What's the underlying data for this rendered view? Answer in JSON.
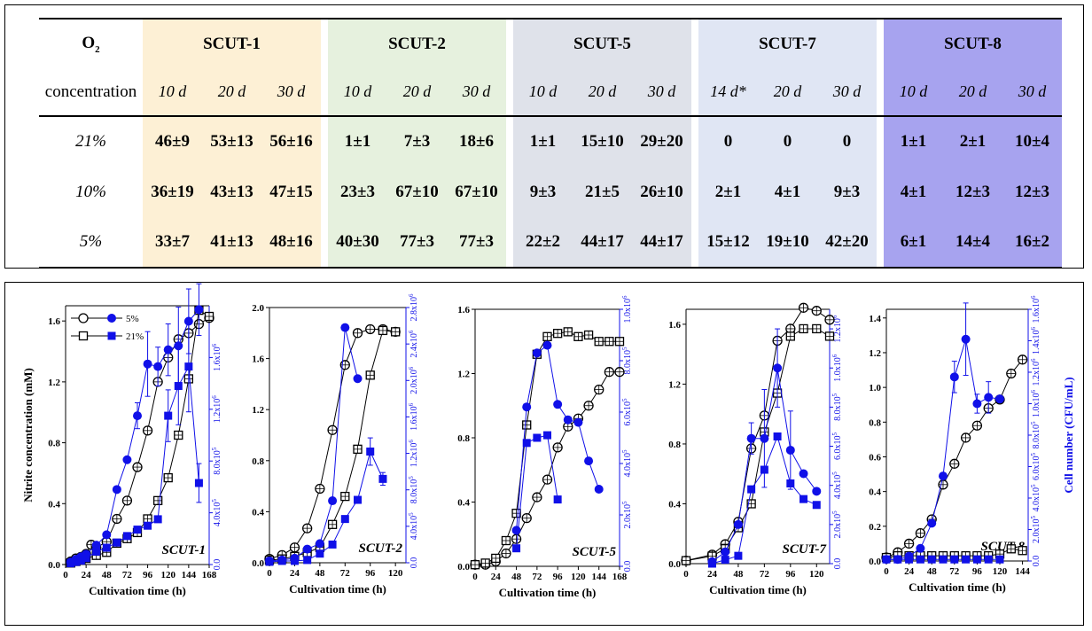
{
  "table": {
    "o2_label": "O",
    "o2_sub": "2",
    "conc_label": "concentration",
    "strains": [
      {
        "name": "SCUT-1",
        "days": [
          "10 d",
          "20 d",
          "30 d"
        ]
      },
      {
        "name": "SCUT-2",
        "days": [
          "10 d",
          "20 d",
          "30 d"
        ]
      },
      {
        "name": "SCUT-5",
        "days": [
          "10 d",
          "20 d",
          "30 d"
        ]
      },
      {
        "name": "SCUT-7",
        "days": [
          "14 d*",
          "20 d",
          "30 d"
        ]
      },
      {
        "name": "SCUT-8",
        "days": [
          "10 d",
          "20 d",
          "30 d"
        ]
      }
    ],
    "rows": [
      {
        "label": "21%",
        "cells": [
          [
            "46±9",
            "53±13",
            "56±16"
          ],
          [
            "1±1",
            "7±3",
            "18±6"
          ],
          [
            "1±1",
            "15±10",
            "29±20"
          ],
          [
            "0",
            "0",
            "0"
          ],
          [
            "1±1",
            "2±1",
            "10±4"
          ]
        ]
      },
      {
        "label": "10%",
        "cells": [
          [
            "36±19",
            "43±13",
            "47±15"
          ],
          [
            "23±3",
            "67±10",
            "67±10"
          ],
          [
            "9±3",
            "21±5",
            "26±10"
          ],
          [
            "2±1",
            "4±1",
            "9±3"
          ],
          [
            "4±1",
            "12±3",
            "12±3"
          ]
        ]
      },
      {
        "label": "5%",
        "cells": [
          [
            "33±7",
            "41±13",
            "48±16"
          ],
          [
            "40±30",
            "77±3",
            "77±3"
          ],
          [
            "22±2",
            "44±17",
            "44±17"
          ],
          [
            "15±12",
            "19±10",
            "42±20"
          ],
          [
            "6±1",
            "14±4",
            "16±2"
          ]
        ]
      }
    ]
  },
  "legend": {
    "series_5": "5%",
    "series_21": "21%"
  },
  "axis_titles": {
    "ylabel_left": "Nitrite concentration (mM)",
    "ylabel_right": "Cell number (CFU/mL)",
    "xlabel": "Cultivation time (h)"
  },
  "colors": {
    "nitrite": "#000000",
    "cells": "#1010e8",
    "grid": "#000000"
  },
  "chart_data": [
    {
      "type": "line",
      "title": "SCUT-1",
      "xlabel": "Cultivation time (h)",
      "ylabel": "Nitrite concentration (mM)",
      "xlim": [
        0,
        168
      ],
      "ylim": [
        0,
        1.7
      ],
      "y2lim": [
        0,
        2000000
      ],
      "xticks": [
        0,
        24,
        48,
        72,
        96,
        120,
        144,
        168
      ],
      "yticks": [
        0,
        0.4,
        0.8,
        1.2,
        1.6
      ],
      "y2ticks": [
        0,
        400000,
        800000,
        1200000,
        1600000
      ],
      "y2ticklabels": [
        "0.0",
        "4.0x10^5",
        "8.0x10^5",
        "1.2x10^6",
        "1.6x10^6"
      ],
      "ytickfmt": 1,
      "series": [
        {
          "name": "5%",
          "kind": "nitrite",
          "marker": "circle",
          "x": [
            6,
            12,
            18,
            24,
            30,
            36,
            48,
            60,
            72,
            84,
            96,
            108,
            120,
            132,
            144,
            156,
            168
          ],
          "y": [
            0.02,
            0.04,
            0.05,
            0.07,
            0.13,
            0.11,
            0.15,
            0.3,
            0.42,
            0.64,
            0.88,
            1.2,
            1.36,
            1.48,
            1.52,
            1.58,
            1.62
          ]
        },
        {
          "name": "21%",
          "kind": "nitrite",
          "marker": "square",
          "x": [
            6,
            12,
            18,
            24,
            36,
            48,
            60,
            72,
            84,
            96,
            108,
            120,
            132,
            144,
            156,
            168
          ],
          "y": [
            0.01,
            0.02,
            0.03,
            0.04,
            0.06,
            0.08,
            0.14,
            0.17,
            0.21,
            0.3,
            0.42,
            0.57,
            0.85,
            1.22,
            1.67,
            1.63
          ]
        },
        {
          "name": "5%",
          "kind": "cells",
          "marker": "circle",
          "x": [
            6,
            12,
            18,
            24,
            36,
            48,
            60,
            72,
            84,
            96,
            108,
            120,
            132,
            144,
            156
          ],
          "y": [
            20000,
            40000,
            60000,
            80000,
            150000,
            230000,
            580000,
            810000,
            1150000,
            1550000,
            1530000,
            1660000,
            1690000,
            1880000,
            1970000
          ],
          "err": [
            0,
            0,
            0,
            0,
            0,
            0,
            0,
            0,
            100000,
            250000,
            150000,
            200000,
            300000,
            250000,
            200000
          ]
        },
        {
          "name": "21%",
          "kind": "cells",
          "marker": "square",
          "x": [
            6,
            12,
            18,
            24,
            36,
            48,
            60,
            72,
            84,
            96,
            108,
            120,
            132,
            144,
            156
          ],
          "y": [
            10000,
            20000,
            30000,
            50000,
            100000,
            130000,
            170000,
            220000,
            270000,
            300000,
            350000,
            1150000,
            1380000,
            1530000,
            630000
          ],
          "err": [
            0,
            0,
            0,
            0,
            0,
            0,
            0,
            0,
            0,
            0,
            0,
            200000,
            300000,
            350000,
            150000
          ]
        }
      ]
    },
    {
      "type": "line",
      "title": "SCUT-2",
      "xlabel": "Cultivation time (h)",
      "xlim": [
        0,
        130
      ],
      "ylim": [
        0,
        2.0
      ],
      "y2lim": [
        0,
        2800000
      ],
      "xticks": [
        0,
        24,
        48,
        72,
        96,
        120
      ],
      "yticks": [
        0,
        0.4,
        0.8,
        1.2,
        1.6,
        2.0
      ],
      "y2ticks": [
        0,
        400000,
        800000,
        1200000,
        1600000,
        2000000,
        2400000,
        2800000
      ],
      "y2ticklabels": [
        "0.0",
        "4.0x10^5",
        "8.0x10^5",
        "1.2x10^6",
        "1.6x10^6",
        "2.0x10^6",
        "2.4x10^6",
        "2.8x10^6"
      ],
      "ytickfmt": 1,
      "series": [
        {
          "name": "5%",
          "kind": "nitrite",
          "marker": "circle",
          "x": [
            0,
            12,
            24,
            36,
            48,
            60,
            72,
            84,
            96,
            108,
            120
          ],
          "y": [
            0.03,
            0.06,
            0.12,
            0.27,
            0.58,
            1.04,
            1.55,
            1.8,
            1.83,
            1.83,
            1.81
          ]
        },
        {
          "name": "21%",
          "kind": "nitrite",
          "marker": "square",
          "x": [
            0,
            12,
            24,
            36,
            48,
            60,
            72,
            84,
            96,
            108,
            120
          ],
          "y": [
            0.02,
            0.03,
            0.05,
            0.08,
            0.12,
            0.3,
            0.52,
            0.89,
            1.47,
            1.82,
            1.81
          ]
        },
        {
          "name": "5%",
          "kind": "cells",
          "marker": "circle",
          "x": [
            0,
            12,
            24,
            36,
            48,
            60,
            72,
            84
          ],
          "y": [
            20000,
            30000,
            50000,
            150000,
            210000,
            680000,
            2580000,
            2020000
          ]
        },
        {
          "name": "21%",
          "kind": "cells",
          "marker": "square",
          "x": [
            0,
            12,
            24,
            36,
            48,
            60,
            72,
            84,
            96,
            108
          ],
          "y": [
            10000,
            20000,
            20000,
            30000,
            100000,
            200000,
            480000,
            690000,
            1220000,
            920000
          ],
          "err": [
            0,
            0,
            0,
            0,
            0,
            0,
            0,
            0,
            150000,
            70000
          ]
        }
      ]
    },
    {
      "type": "line",
      "title": "SCUT-5",
      "xlabel": "Cultivation time (h)",
      "xlim": [
        0,
        168
      ],
      "ylim": [
        0,
        1.6
      ],
      "y2lim": [
        0,
        1000000
      ],
      "xticks": [
        0,
        24,
        48,
        72,
        96,
        120,
        144,
        168
      ],
      "yticks": [
        0,
        0.4,
        0.8,
        1.2,
        1.6
      ],
      "y2ticks": [
        0,
        200000,
        400000,
        600000,
        800000,
        1000000
      ],
      "y2ticklabels": [
        "0.0",
        "2.0x10^5",
        "4.0x10^5",
        "6.0x10^5",
        "8.0x10^5",
        "1.0x10^6"
      ],
      "ytickfmt": 1,
      "series": [
        {
          "name": "5%",
          "kind": "nitrite",
          "marker": "circle",
          "x": [
            0,
            12,
            24,
            36,
            48,
            60,
            72,
            84,
            96,
            108,
            120,
            132,
            144,
            156,
            168
          ],
          "y": [
            0.01,
            0.01,
            0.03,
            0.08,
            0.17,
            0.3,
            0.43,
            0.54,
            0.74,
            0.87,
            0.92,
            1.0,
            1.1,
            1.21,
            1.21
          ]
        },
        {
          "name": "21%",
          "kind": "nitrite",
          "marker": "square",
          "x": [
            0,
            12,
            24,
            36,
            48,
            60,
            72,
            84,
            96,
            108,
            120,
            132,
            144,
            156,
            168
          ],
          "y": [
            0.01,
            0.02,
            0.05,
            0.16,
            0.33,
            0.88,
            1.32,
            1.43,
            1.45,
            1.46,
            1.43,
            1.44,
            1.4,
            1.4,
            1.4
          ]
        },
        {
          "name": "5%",
          "kind": "cells",
          "marker": "circle",
          "x": [
            48,
            60,
            72,
            84,
            96,
            108,
            120,
            132,
            144
          ],
          "y": [
            140000,
            620000,
            830000,
            860000,
            630000,
            570000,
            560000,
            410000,
            300000
          ],
          "err": [
            0,
            0,
            0,
            0,
            0,
            0,
            0,
            0,
            0
          ]
        },
        {
          "name": "21%",
          "kind": "cells",
          "marker": "square",
          "x": [
            48,
            60,
            72,
            84,
            96
          ],
          "y": [
            70000,
            480000,
            500000,
            510000,
            260000
          ],
          "err": [
            0,
            0,
            0,
            0,
            0
          ]
        }
      ]
    },
    {
      "type": "line",
      "title": "SCUT-7",
      "xlabel": "Cultivation time (h)",
      "xlim": [
        0,
        132
      ],
      "ylim": [
        0,
        1.7
      ],
      "y2lim": [
        0,
        1300000
      ],
      "xticks": [
        0,
        24,
        48,
        72,
        96,
        120
      ],
      "yticks": [
        0,
        0.4,
        0.8,
        1.2,
        1.6
      ],
      "y2ticks": [
        0,
        200000,
        400000,
        600000,
        800000,
        1000000,
        1200000
      ],
      "y2ticklabels": [
        "0.0",
        "2.0x10^5",
        "4.0x10^5",
        "6.0x10^5",
        "8.0x10^5",
        "1.0x10^6",
        "1.2x10^6"
      ],
      "ytickfmt": 1,
      "series": [
        {
          "name": "5%",
          "kind": "nitrite",
          "marker": "circle",
          "x": [
            0,
            24,
            36,
            48,
            60,
            72,
            84,
            96,
            108,
            120,
            132
          ],
          "y": [
            0.02,
            0.06,
            0.13,
            0.28,
            0.77,
            0.99,
            1.49,
            1.57,
            1.71,
            1.69,
            1.63
          ]
        },
        {
          "name": "21%",
          "kind": "nitrite",
          "marker": "square",
          "x": [
            0,
            24,
            36,
            48,
            60,
            72,
            84,
            96,
            108,
            120,
            132
          ],
          "y": [
            0.02,
            0.05,
            0.1,
            0.24,
            0.4,
            0.88,
            1.14,
            1.52,
            1.57,
            1.57,
            1.52
          ]
        },
        {
          "name": "5%",
          "kind": "cells",
          "marker": "circle",
          "x": [
            24,
            36,
            48,
            60,
            72,
            84,
            96,
            108,
            120
          ],
          "y": [
            10000,
            60000,
            200000,
            640000,
            640000,
            1000000,
            580000,
            460000,
            370000
          ],
          "err": [
            0,
            0,
            0,
            80000,
            250000,
            200000,
            200000,
            0,
            0
          ]
        },
        {
          "name": "21%",
          "kind": "cells",
          "marker": "square",
          "x": [
            24,
            36,
            48,
            60,
            72,
            84,
            96,
            108,
            120
          ],
          "y": [
            0,
            20000,
            40000,
            380000,
            480000,
            650000,
            410000,
            330000,
            300000
          ],
          "err": [
            0,
            0,
            0,
            0,
            0,
            0,
            0,
            0,
            0
          ]
        }
      ]
    },
    {
      "type": "line",
      "title": "SCUT-8",
      "xlabel": "Cultivation time (h)",
      "ylabel": "Cell number (CFU/mL)",
      "xlim": [
        0,
        150
      ],
      "ylim": [
        0,
        1.45
      ],
      "y2lim": [
        0,
        1600000
      ],
      "xticks": [
        0,
        24,
        48,
        72,
        96,
        120,
        144
      ],
      "yticks": [
        0,
        0.2,
        0.4,
        0.6,
        0.8,
        1.0,
        1.2,
        1.4
      ],
      "y2ticks": [
        0,
        200000,
        400000,
        600000,
        800000,
        1000000,
        1200000,
        1400000,
        1600000
      ],
      "y2ticklabels": [
        "0.0",
        "2.0x10^5",
        "4.0x10^5",
        "6.0x10^5",
        "8.0x10^5",
        "1.0x10^6",
        "1.2x10^6",
        "1.4x10^6",
        "1.6x10^6"
      ],
      "ytickfmt": 1,
      "series": [
        {
          "name": "5%",
          "kind": "nitrite",
          "marker": "circle",
          "x": [
            0,
            12,
            24,
            36,
            48,
            60,
            72,
            84,
            96,
            108,
            120,
            132,
            144
          ],
          "y": [
            0.02,
            0.05,
            0.1,
            0.16,
            0.24,
            0.44,
            0.56,
            0.71,
            0.78,
            0.88,
            0.93,
            1.08,
            1.16
          ]
        },
        {
          "name": "21%",
          "kind": "nitrite",
          "marker": "square",
          "x": [
            0,
            12,
            24,
            36,
            48,
            60,
            72,
            84,
            96,
            108,
            120,
            132,
            144
          ],
          "y": [
            0.02,
            0.03,
            0.03,
            0.03,
            0.03,
            0.03,
            0.03,
            0.03,
            0.03,
            0.03,
            0.04,
            0.07,
            0.06
          ]
        },
        {
          "name": "5%",
          "kind": "cells",
          "marker": "circle",
          "x": [
            0,
            12,
            24,
            36,
            48,
            60,
            72,
            84,
            96,
            108,
            120
          ],
          "y": [
            10000,
            10000,
            30000,
            80000,
            240000,
            540000,
            1170000,
            1410000,
            1000000,
            1040000,
            1030000
          ],
          "err": [
            0,
            0,
            0,
            0,
            0,
            0,
            100000,
            230000,
            60000,
            100000,
            0
          ]
        },
        {
          "name": "21%",
          "kind": "cells",
          "marker": "square",
          "x": [
            0,
            12,
            24,
            36,
            48,
            60,
            72,
            84,
            96,
            108,
            120
          ],
          "y": [
            10000,
            10000,
            10000,
            10000,
            10000,
            10000,
            10000,
            10000,
            10000,
            10000,
            10000
          ],
          "err": [
            0,
            0,
            0,
            0,
            0,
            0,
            0,
            0,
            0,
            0,
            0
          ]
        }
      ]
    }
  ]
}
